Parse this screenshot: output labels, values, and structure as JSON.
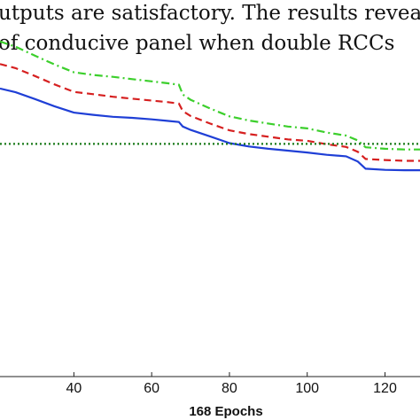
{
  "text": {
    "line1": "utputs are satisfactory.  The results revea",
    "line2": "of conducive panel when double RCCs"
  },
  "chart_data": {
    "type": "line",
    "xlabel": "168 Epochs",
    "ylabel": "",
    "title": "",
    "xlim": [
      21,
      129
    ],
    "ylim": [
      0,
      1
    ],
    "xticks": [
      40,
      60,
      80,
      100,
      120
    ],
    "series": [
      {
        "color": "#1f3fd6",
        "style": "solid",
        "x": [
          21,
          25,
          30,
          35,
          40,
          45,
          50,
          55,
          60,
          64,
          67,
          68,
          70,
          75,
          80,
          85,
          90,
          95,
          100,
          105,
          110,
          113,
          115,
          120,
          125,
          129
        ],
        "y": [
          0.765,
          0.755,
          0.737,
          0.718,
          0.701,
          0.695,
          0.69,
          0.687,
          0.683,
          0.679,
          0.676,
          0.664,
          0.655,
          0.638,
          0.62,
          0.611,
          0.605,
          0.6,
          0.595,
          0.589,
          0.585,
          0.571,
          0.552,
          0.549,
          0.548,
          0.548
        ]
      },
      {
        "color": "#d62020",
        "style": "dashed",
        "x": [
          21,
          25,
          30,
          35,
          40,
          45,
          50,
          55,
          60,
          64,
          67,
          68,
          70,
          75,
          80,
          85,
          90,
          95,
          100,
          105,
          110,
          113,
          115,
          120,
          125,
          129
        ],
        "y": [
          0.83,
          0.819,
          0.798,
          0.776,
          0.756,
          0.75,
          0.743,
          0.738,
          0.733,
          0.729,
          0.725,
          0.705,
          0.692,
          0.672,
          0.654,
          0.644,
          0.637,
          0.63,
          0.626,
          0.617,
          0.61,
          0.597,
          0.578,
          0.575,
          0.573,
          0.573
        ]
      },
      {
        "color": "#3ccf2c",
        "style": "dash-dot",
        "x": [
          21,
          25,
          30,
          35,
          40,
          45,
          50,
          55,
          60,
          64,
          67,
          68,
          70,
          75,
          80,
          85,
          90,
          95,
          100,
          105,
          110,
          113,
          115,
          120,
          125,
          129
        ],
        "y": [
          0.89,
          0.876,
          0.852,
          0.829,
          0.808,
          0.801,
          0.796,
          0.79,
          0.784,
          0.779,
          0.775,
          0.749,
          0.735,
          0.712,
          0.691,
          0.68,
          0.672,
          0.664,
          0.659,
          0.648,
          0.64,
          0.627,
          0.609,
          0.605,
          0.603,
          0.603
        ]
      },
      {
        "color": "#1a7a1a",
        "style": "dotted",
        "x": [
          21,
          129
        ],
        "y": [
          0.618,
          0.618
        ]
      }
    ]
  }
}
